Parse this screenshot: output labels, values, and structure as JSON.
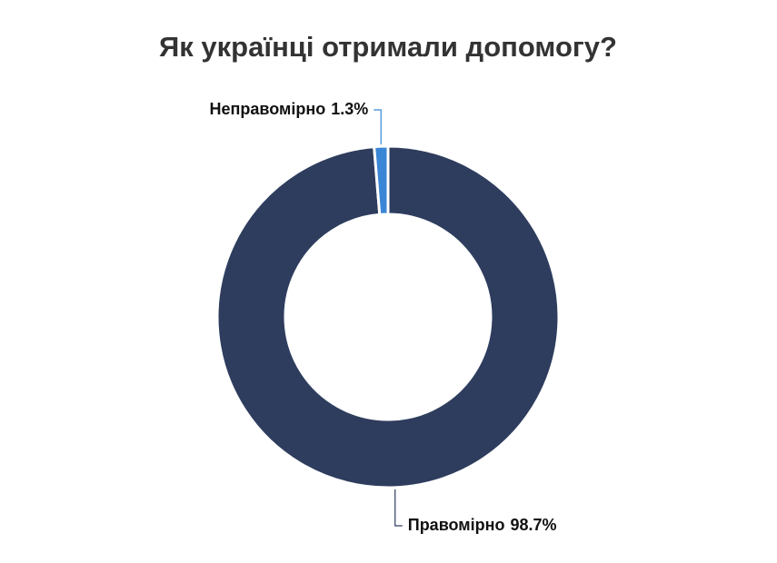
{
  "chart_data": {
    "type": "donut",
    "title": "Як українці отримали допомогу?",
    "categories": [
      "Правомірно",
      "Неправомірно"
    ],
    "values": [
      98.7,
      1.3
    ],
    "value_labels": [
      "98.7%",
      "1.3%"
    ],
    "colors": [
      "#2e3d5e",
      "#3a86d6"
    ]
  }
}
